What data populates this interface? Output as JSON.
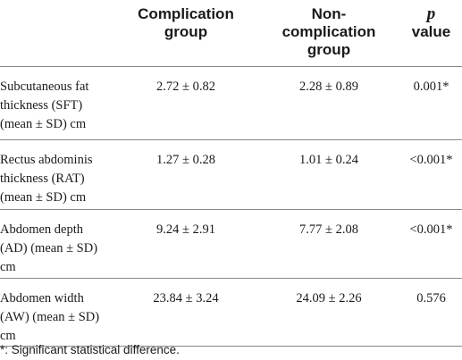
{
  "table": {
    "headers": {
      "label": "",
      "complication_line1": "Complication",
      "complication_line2": "group",
      "noncomplication_line1": "Non-",
      "noncomplication_line2": "complication",
      "noncomplication_line3": "group",
      "pvalue_line1": "p",
      "pvalue_line2": "value"
    },
    "rows": [
      {
        "label": "Subcutaneous fat thickness (SFT) (mean ± SD) cm",
        "complication": "2.72 ± 0.82",
        "noncomplication": "2.28 ± 0.89",
        "p": "0.001*"
      },
      {
        "label": "Rectus abdominis thickness (RAT) (mean ± SD) cm",
        "complication": "1.27 ± 0.28",
        "noncomplication": "1.01 ± 0.24",
        "p": "<0.001*"
      },
      {
        "label": "Abdomen depth (AD) (mean ± SD) cm",
        "complication": "9.24 ± 2.91",
        "noncomplication": "7.77 ± 2.08",
        "p": "<0.001*"
      },
      {
        "label": "Abdomen width (AW) (mean ± SD) cm",
        "complication": "23.84 ± 3.24",
        "noncomplication": "24.09 ± 2.26",
        "p": "0.576"
      }
    ]
  },
  "footnote": "*: Significant statistical difference."
}
